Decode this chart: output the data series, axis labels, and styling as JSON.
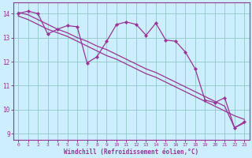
{
  "xlabel": "Windchill (Refroidissement éolien,°C)",
  "background_color": "#cceeff",
  "grid_color": "#99cccc",
  "line_color": "#993399",
  "xlim": [
    -0.5,
    23.5
  ],
  "ylim": [
    8.75,
    14.45
  ],
  "yticks": [
    9,
    10,
    11,
    12,
    13,
    14
  ],
  "xticks": [
    0,
    1,
    2,
    3,
    4,
    5,
    6,
    7,
    8,
    9,
    10,
    11,
    12,
    13,
    14,
    15,
    16,
    17,
    18,
    19,
    20,
    21,
    22,
    23
  ],
  "series_main": [
    14.0,
    14.1,
    14.0,
    13.15,
    13.35,
    13.5,
    13.45,
    11.95,
    12.2,
    12.85,
    13.55,
    13.65,
    13.55,
    13.1,
    13.6,
    12.9,
    12.85,
    12.4,
    11.7,
    10.4,
    10.3,
    10.5,
    9.25,
    9.5
  ],
  "series_smooth1": [
    14.05,
    13.95,
    13.75,
    13.55,
    13.35,
    13.2,
    13.0,
    12.85,
    12.65,
    12.5,
    12.3,
    12.1,
    11.9,
    11.7,
    11.55,
    11.35,
    11.15,
    10.95,
    10.75,
    10.55,
    10.35,
    10.15,
    9.25,
    9.45
  ],
  "series_smooth2": [
    13.9,
    13.75,
    13.55,
    13.35,
    13.2,
    13.05,
    12.85,
    12.65,
    12.45,
    12.25,
    12.1,
    11.9,
    11.7,
    11.5,
    11.35,
    11.15,
    10.95,
    10.75,
    10.55,
    10.35,
    10.15,
    9.95,
    9.75,
    9.6
  ]
}
